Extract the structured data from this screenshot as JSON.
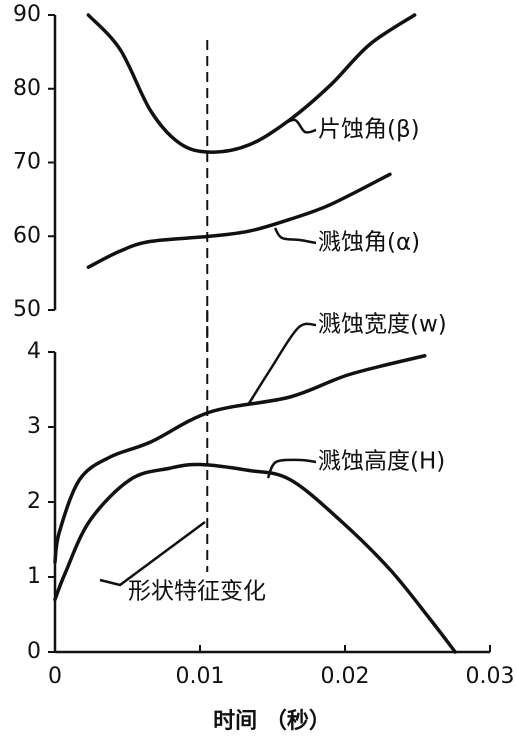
{
  "chart_data": [
    {
      "type": "line",
      "xlim": [
        0,
        0.03
      ],
      "ylim": [
        50,
        90
      ],
      "yticks": [
        50,
        60,
        70,
        80,
        90
      ],
      "vline": 0.0105,
      "series": [
        {
          "name": "片蚀角(β)",
          "color": "#111111",
          "x": [
            0.0023,
            0.0045,
            0.0066,
            0.0086,
            0.0107,
            0.0134,
            0.0162,
            0.019,
            0.0217,
            0.0248
          ],
          "values": [
            90,
            85.3,
            77,
            72.6,
            71.4,
            72.4,
            75.8,
            80.5,
            86,
            90
          ]
        },
        {
          "name": "溅蚀角(α)",
          "color": "#111111",
          "x": [
            0.0023,
            0.0045,
            0.0066,
            0.0107,
            0.0134,
            0.0162,
            0.019,
            0.0231
          ],
          "values": [
            55.8,
            58,
            59.3,
            60,
            60.7,
            62.3,
            64.3,
            68.4
          ]
        }
      ]
    },
    {
      "type": "line",
      "xlim": [
        0,
        0.03
      ],
      "xticks": [
        0,
        0.01,
        0.02,
        0.03
      ],
      "ylim": [
        0,
        4
      ],
      "yticks": [
        0,
        1,
        2,
        3,
        4
      ],
      "xlabel": "时间 （秒）",
      "vline": 0.0105,
      "annotation": "形状特征变化",
      "series": [
        {
          "name": "溅蚀宽度(w)",
          "color": "#111111",
          "x": [
            0,
            0.0003,
            0.0017,
            0.0038,
            0.0066,
            0.0107,
            0.0162,
            0.0203,
            0.0255
          ],
          "values": [
            1.2,
            1.6,
            2.3,
            2.6,
            2.8,
            3.2,
            3.4,
            3.7,
            3.95
          ]
        },
        {
          "name": "溅蚀高度(H)",
          "color": "#111111",
          "x": [
            0,
            0.0007,
            0.0024,
            0.0052,
            0.0079,
            0.01,
            0.0134,
            0.0162,
            0.0197,
            0.0231,
            0.0259,
            0.0276
          ],
          "values": [
            0.7,
            1.05,
            1.75,
            2.3,
            2.45,
            2.5,
            2.42,
            2.3,
            1.75,
            1.1,
            0.43,
            0
          ]
        }
      ]
    }
  ]
}
